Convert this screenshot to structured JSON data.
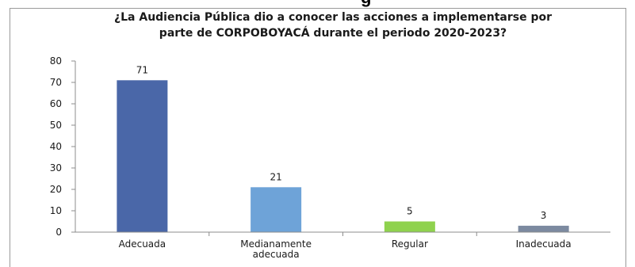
{
  "fragment_text": "g",
  "chart_data": {
    "type": "bar",
    "title_lines": [
      "¿La Audiencia Pública dio a conocer las acciones a implementarse por",
      "parte de CORPOBOYACÁ durante el periodo 2020-2023?"
    ],
    "categories": [
      [
        "Adecuada"
      ],
      [
        "Medianamente",
        "adecuada"
      ],
      [
        "Regular"
      ],
      [
        "Inadecuada"
      ]
    ],
    "values": [
      71,
      21,
      5,
      3
    ],
    "data_labels": [
      "71",
      "21",
      "5",
      "3"
    ],
    "bar_colors": [
      "#4a67a8",
      "#6ea3d8",
      "#8fd24e",
      "#7c8aa0"
    ],
    "ylim": [
      0,
      80
    ],
    "yticks": [
      0,
      10,
      20,
      30,
      40,
      50,
      60,
      70,
      80
    ],
    "grid": false,
    "legend": "none"
  }
}
